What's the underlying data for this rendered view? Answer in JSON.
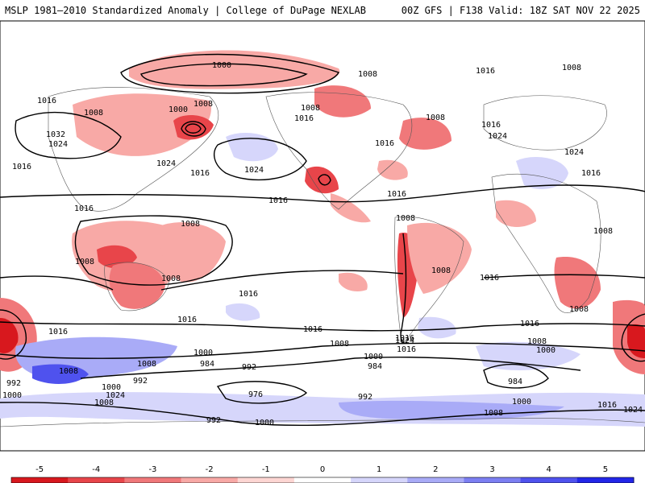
{
  "header": {
    "left_title": "MSLP 1981–2010 Standardized Anomaly | College of DuPage NEXLAB",
    "right_title": "00Z GFS | F138 Valid: 18Z SAT NOV 22 2025"
  },
  "colorbar": {
    "ticks": [
      "-5",
      "-4",
      "-3",
      "-2",
      "-1",
      "0",
      "1",
      "2",
      "3",
      "4",
      "5"
    ],
    "colors": [
      "#d8181e",
      "#e8454a",
      "#f0787a",
      "#f8a9a6",
      "#fdd6d3",
      "#ffffff",
      "#d6d6fb",
      "#a9abf7",
      "#7c7ff2",
      "#4f52ee",
      "#2226e8"
    ]
  },
  "map": {
    "isobar_labels": [
      "1000",
      "1008",
      "1016",
      "1008",
      "1016",
      "1008",
      "1000",
      "1008",
      "1016",
      "1008",
      "1008",
      "1016",
      "1032",
      "1024",
      "1024",
      "1024",
      "1016",
      "1016",
      "1024",
      "1016",
      "1024",
      "1016",
      "1016",
      "1016",
      "1016",
      "1008",
      "1008",
      "1008",
      "1008",
      "1008",
      "1016",
      "1016",
      "1008",
      "1016",
      "1016",
      "1008",
      "1016",
      "1000",
      "984",
      "992",
      "1000",
      "1008",
      "1000",
      "1024",
      "992",
      "976",
      "992",
      "984",
      "992",
      "1008",
      "1008",
      "1000",
      "1008",
      "1016",
      "1024",
      "1016",
      "1008",
      "1000",
      "984",
      "1000",
      "992",
      "1024",
      "1016",
      "1008",
      "1016",
      "1000"
    ]
  }
}
